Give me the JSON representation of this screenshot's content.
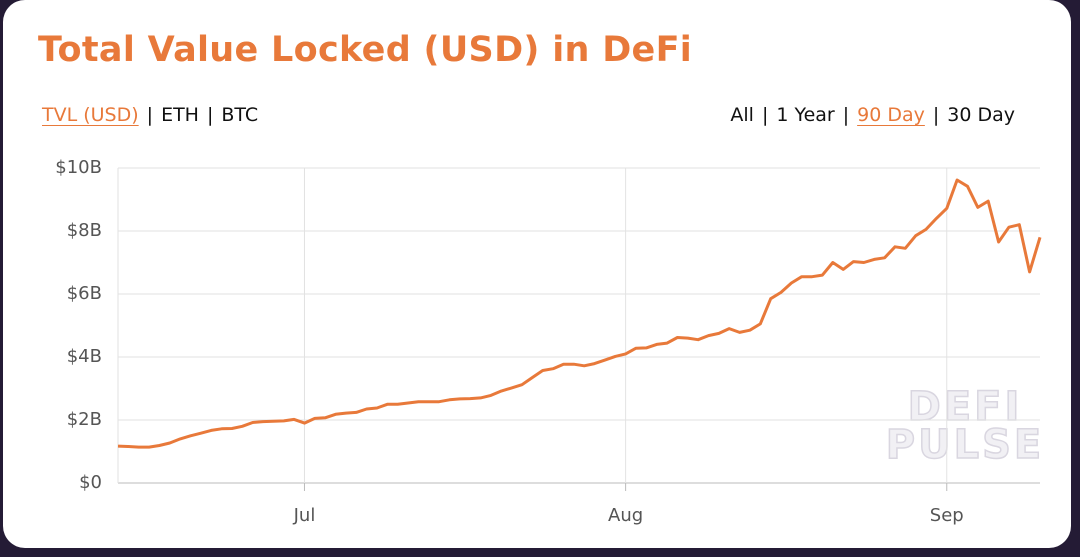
{
  "chart_data": {
    "type": "line",
    "title": "Total Value Locked (USD) in DeFi",
    "separator": "|",
    "tabs_left": [
      {
        "label": "TVL (USD)",
        "active": true
      },
      {
        "label": "ETH",
        "active": false
      },
      {
        "label": "BTC",
        "active": false
      }
    ],
    "tabs_right": [
      {
        "label": "All",
        "active": false
      },
      {
        "label": "1 Year",
        "active": false
      },
      {
        "label": "90 Day",
        "active": true
      },
      {
        "label": "30 Day",
        "active": false
      }
    ],
    "watermark": [
      "DEFI",
      "PULSE"
    ],
    "color": "#e8793a",
    "grid": true,
    "categories": [
      null,
      null,
      null,
      null,
      null,
      null,
      null,
      null,
      null,
      null,
      null,
      null,
      null,
      null,
      null,
      null,
      null,
      null,
      "Jul",
      null,
      null,
      null,
      null,
      null,
      null,
      null,
      null,
      null,
      null,
      null,
      null,
      null,
      null,
      null,
      null,
      null,
      null,
      null,
      null,
      null,
      null,
      null,
      null,
      null,
      null,
      null,
      null,
      null,
      null,
      "Aug",
      null,
      null,
      null,
      null,
      null,
      null,
      null,
      null,
      null,
      null,
      null,
      null,
      null,
      null,
      null,
      null,
      null,
      null,
      null,
      null,
      null,
      null,
      null,
      null,
      null,
      null,
      null,
      null,
      null,
      null,
      "Sep",
      null,
      null,
      null,
      null,
      null,
      null,
      null,
      null,
      null
    ],
    "values": [
      1.17,
      1.16,
      1.14,
      1.14,
      1.19,
      1.27,
      1.4,
      1.5,
      1.58,
      1.67,
      1.72,
      1.73,
      1.8,
      1.92,
      1.95,
      1.96,
      1.97,
      2.02,
      1.9,
      2.05,
      2.07,
      2.18,
      2.22,
      2.24,
      2.35,
      2.38,
      2.5,
      2.5,
      2.54,
      2.58,
      2.58,
      2.58,
      2.64,
      2.67,
      2.68,
      2.7,
      2.78,
      2.92,
      3.02,
      3.12,
      3.35,
      3.57,
      3.63,
      3.77,
      3.77,
      3.72,
      3.79,
      3.9,
      4.02,
      4.1,
      4.28,
      4.29,
      4.4,
      4.44,
      4.62,
      4.6,
      4.55,
      4.68,
      4.75,
      4.9,
      4.78,
      4.85,
      5.05,
      5.85,
      6.05,
      6.35,
      6.55,
      6.55,
      6.6,
      7.0,
      6.78,
      7.03,
      7.0,
      7.1,
      7.15,
      7.5,
      7.45,
      7.85,
      8.05,
      8.4,
      8.72,
      9.62,
      9.42,
      8.75,
      8.95,
      7.65,
      8.12,
      8.2,
      6.7,
      7.8
    ],
    "ylim": [
      0,
      10
    ],
    "yticks": [
      {
        "value": 0,
        "label": "$0"
      },
      {
        "value": 2,
        "label": "$2B"
      },
      {
        "value": 4,
        "label": "$4B"
      },
      {
        "value": 6,
        "label": "$6B"
      },
      {
        "value": 8,
        "label": "$8B"
      },
      {
        "value": 10,
        "label": "$10B"
      }
    ]
  }
}
